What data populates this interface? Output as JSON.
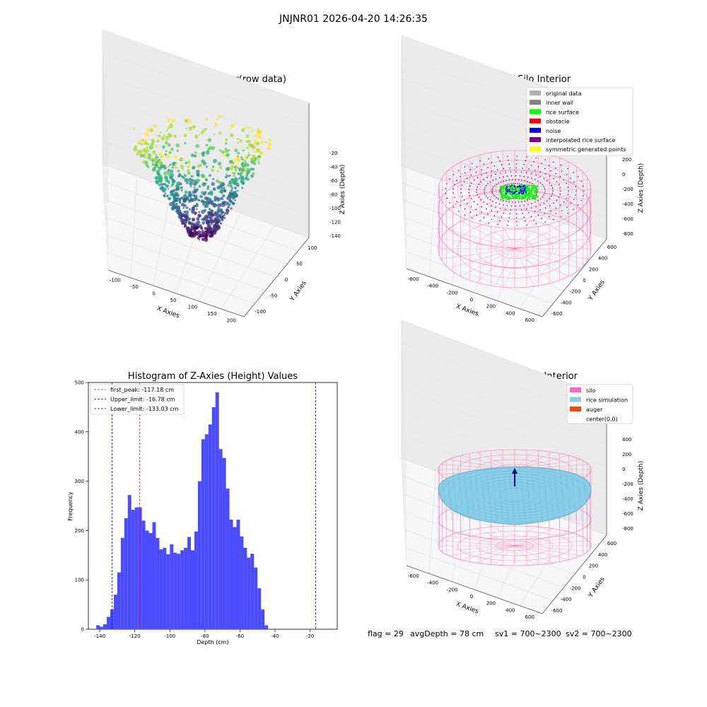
{
  "figure": {
    "suptitle": "JNJNR01 2026-04-20 14:26:35",
    "footer": {
      "flag": "flag = 29",
      "avg_depth": "avgDepth = 78 cm",
      "sv1": "sv1 = 700~2300",
      "sv2": "sv2 = 700~2300"
    }
  },
  "colors": {
    "hist_bar": "#4b4bff",
    "first_peak_line": "#ff0000",
    "limit_line": "#0000ff",
    "silo_wire": "#ff69b4",
    "rice_sim": "#87ceeb",
    "auger": "#ff4500",
    "rice_surface": "#00ff00",
    "noise": "#0000ff",
    "interpolated": "#800080",
    "symmetric": "#ffff00",
    "original": "#b0b0b0",
    "inner_wall": "#808080",
    "obstacle": "#ff0000"
  },
  "chart_data": [
    {
      "type": "scatter",
      "title": "3D Plot of Silo Interior(row data)",
      "xlabel": "X Axies",
      "ylabel": "Y Axies",
      "zlabel": "Z Axies (Depth)",
      "x_ticks": [
        "-100",
        "-50",
        "0",
        "50",
        "100",
        "150",
        "200"
      ],
      "y_ticks": [
        "-100",
        "-50",
        "0",
        "50",
        "100"
      ],
      "z_ticks": [
        "-20",
        "-40",
        "-60",
        "-80",
        "-100",
        "-120",
        "-140"
      ],
      "zlim": [
        -145,
        -10
      ],
      "colormap": "viridis"
    },
    {
      "type": "scatter",
      "title": "3D classify of Silo Interior",
      "zlabel": "Z Axies (Depth)",
      "xlabel": "X Axies",
      "ylabel": "Y Axies",
      "x_ticks": [
        "-600",
        "-400",
        "-200",
        "0",
        "200",
        "400",
        "600"
      ],
      "y_ticks": [
        "-600",
        "-400",
        "-200",
        "0",
        "200",
        "400",
        "600"
      ],
      "z_ticks": [
        "200",
        "0",
        "-200",
        "-400",
        "-600",
        "-800"
      ],
      "legend": [
        {
          "label": "original data",
          "color": "#b0b0b0"
        },
        {
          "label": "inner wall",
          "color": "#808080"
        },
        {
          "label": "rice surface",
          "color": "#00ff00"
        },
        {
          "label": "obstacle",
          "color": "#ff0000"
        },
        {
          "label": "noise",
          "color": "#0000ff"
        },
        {
          "label": "interpolated rice surface",
          "color": "#800080"
        },
        {
          "label": "symmetric generated points",
          "color": "#ffff00"
        }
      ],
      "legend_position": "top-right"
    },
    {
      "type": "bar",
      "title": "Histogram of Z-Axies (Height) Values",
      "xlabel": "Depth (cm)",
      "ylabel": "Frequency",
      "x_ticks": [
        -140,
        -120,
        -100,
        -80,
        -60,
        -40,
        -20
      ],
      "y_ticks": [
        0,
        100,
        200,
        300,
        400,
        500
      ],
      "xlim": [
        -146.5,
        -4.5
      ],
      "ylim": [
        0,
        500
      ],
      "bin_start": -142,
      "bin_width": 2,
      "values": [
        8,
        5,
        10,
        25,
        40,
        70,
        115,
        185,
        225,
        272,
        242,
        247,
        247,
        220,
        200,
        195,
        217,
        185,
        162,
        165,
        152,
        172,
        155,
        153,
        160,
        165,
        187,
        160,
        198,
        300,
        385,
        395,
        415,
        450,
        480,
        365,
        347,
        285,
        222,
        207,
        222,
        188,
        165,
        145,
        153,
        125,
        83,
        40,
        8
      ],
      "lines": [
        {
          "label": "first_peak: -117.18 cm",
          "x": -117.18,
          "color": "#ff0000"
        },
        {
          "label": "Upper_limit: -16.78 cm",
          "x": -16.78,
          "color": "#0000ff"
        },
        {
          "label": "Lower_limit: -133.03 cm",
          "x": -133.03,
          "color": "#0000ff"
        }
      ],
      "legend_position": "top-left"
    },
    {
      "type": "scatter",
      "title": "3D simulation of Silo Interior",
      "xlabel": "X Axies",
      "ylabel": "Y Axies",
      "zlabel": "Z Axies (Depth)",
      "x_ticks": [
        "-600",
        "-400",
        "-200",
        "0",
        "200",
        "400",
        "600"
      ],
      "y_ticks": [
        "-600",
        "-400",
        "-200",
        "0",
        "200",
        "400",
        "600"
      ],
      "z_ticks": [
        "400",
        "200",
        "0",
        "-200",
        "-400",
        "-600",
        "-800"
      ],
      "legend": [
        {
          "label": "silo",
          "color": "#ff69b4"
        },
        {
          "label": "rice simulation",
          "color": "#87ceeb"
        },
        {
          "label": "auger",
          "color": "#ff4500"
        },
        {
          "label": "center(0,0)",
          "color": "none"
        }
      ],
      "legend_position": "top-right"
    }
  ]
}
